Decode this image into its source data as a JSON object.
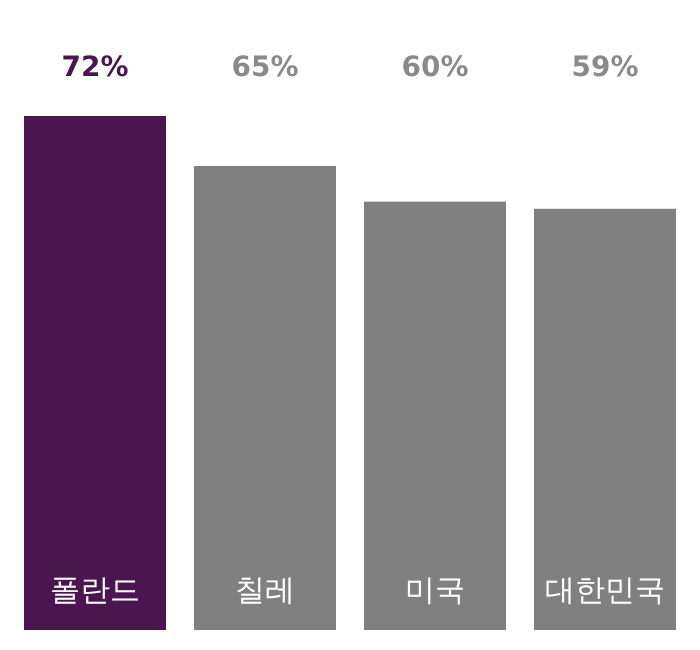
{
  "chart_data": {
    "type": "bar",
    "categories": [
      "폴란드",
      "칠레",
      "미국",
      "대한민국"
    ],
    "values": [
      72,
      65,
      60,
      59
    ],
    "colors": [
      "#4a1650",
      "#808080",
      "#808080",
      "#808080"
    ],
    "value_labels": [
      "72%",
      "65%",
      "60%",
      "59%"
    ]
  }
}
